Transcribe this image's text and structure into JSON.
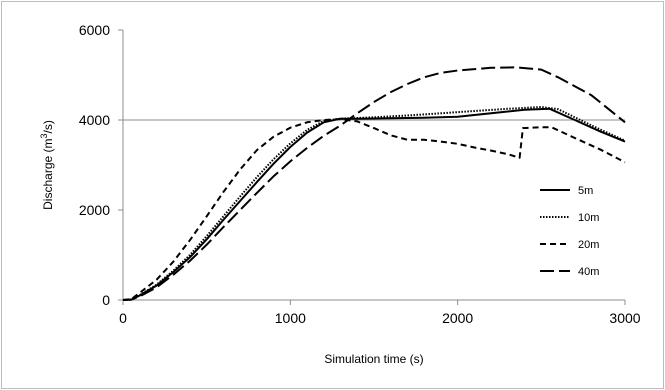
{
  "chart_data": {
    "type": "line",
    "xlabel": "Simulation time (s)",
    "ylabel_prefix": "Discharge (m",
    "ylabel_sup": "3",
    "ylabel_suffix": "/s)",
    "xlim": [
      0,
      3000
    ],
    "ylim": [
      0,
      6000
    ],
    "x_ticks": [
      0,
      1000,
      2000,
      3000
    ],
    "y_ticks": [
      0,
      2000,
      4000,
      6000
    ],
    "reference_line_y": 4000,
    "legend_position": "right",
    "series": [
      {
        "name": "5m",
        "dash": "solid",
        "points": [
          [
            0,
            0
          ],
          [
            50,
            10
          ],
          [
            100,
            100
          ],
          [
            200,
            320
          ],
          [
            300,
            620
          ],
          [
            400,
            950
          ],
          [
            500,
            1350
          ],
          [
            600,
            1780
          ],
          [
            700,
            2200
          ],
          [
            800,
            2620
          ],
          [
            900,
            3030
          ],
          [
            1000,
            3400
          ],
          [
            1100,
            3720
          ],
          [
            1200,
            3950
          ],
          [
            1300,
            4030
          ],
          [
            1400,
            4030
          ],
          [
            1600,
            4040
          ],
          [
            1800,
            4050
          ],
          [
            2000,
            4070
          ],
          [
            2200,
            4150
          ],
          [
            2400,
            4230
          ],
          [
            2550,
            4250
          ],
          [
            2700,
            4000
          ],
          [
            2850,
            3750
          ],
          [
            3000,
            3520
          ]
        ]
      },
      {
        "name": "10m",
        "dash": "dotted",
        "points": [
          [
            0,
            0
          ],
          [
            50,
            10
          ],
          [
            100,
            110
          ],
          [
            200,
            340
          ],
          [
            300,
            650
          ],
          [
            400,
            1000
          ],
          [
            500,
            1420
          ],
          [
            600,
            1860
          ],
          [
            700,
            2300
          ],
          [
            800,
            2730
          ],
          [
            900,
            3130
          ],
          [
            1000,
            3480
          ],
          [
            1100,
            3780
          ],
          [
            1200,
            3980
          ],
          [
            1300,
            4030
          ],
          [
            1500,
            4060
          ],
          [
            1700,
            4100
          ],
          [
            1900,
            4150
          ],
          [
            2100,
            4200
          ],
          [
            2300,
            4250
          ],
          [
            2500,
            4290
          ],
          [
            2600,
            4240
          ],
          [
            2800,
            3880
          ],
          [
            3000,
            3540
          ]
        ]
      },
      {
        "name": "20m",
        "dash": "short",
        "points": [
          [
            0,
            0
          ],
          [
            50,
            20
          ],
          [
            100,
            160
          ],
          [
            200,
            450
          ],
          [
            300,
            850
          ],
          [
            400,
            1330
          ],
          [
            500,
            1860
          ],
          [
            600,
            2400
          ],
          [
            700,
            2900
          ],
          [
            800,
            3330
          ],
          [
            900,
            3630
          ],
          [
            1000,
            3830
          ],
          [
            1100,
            3950
          ],
          [
            1200,
            4000
          ],
          [
            1300,
            4020
          ],
          [
            1400,
            3970
          ],
          [
            1500,
            3820
          ],
          [
            1600,
            3660
          ],
          [
            1700,
            3560
          ],
          [
            1800,
            3560
          ],
          [
            1900,
            3520
          ],
          [
            2000,
            3470
          ],
          [
            2100,
            3390
          ],
          [
            2200,
            3320
          ],
          [
            2300,
            3240
          ],
          [
            2370,
            3160
          ],
          [
            2390,
            3820
          ],
          [
            2500,
            3840
          ],
          [
            2560,
            3840
          ],
          [
            2700,
            3600
          ],
          [
            2850,
            3350
          ],
          [
            3000,
            3060
          ]
        ]
      },
      {
        "name": "40m",
        "dash": "long",
        "points": [
          [
            0,
            0
          ],
          [
            50,
            10
          ],
          [
            100,
            80
          ],
          [
            200,
            280
          ],
          [
            300,
            560
          ],
          [
            400,
            870
          ],
          [
            500,
            1230
          ],
          [
            600,
            1620
          ],
          [
            700,
            2000
          ],
          [
            800,
            2380
          ],
          [
            900,
            2750
          ],
          [
            1000,
            3080
          ],
          [
            1100,
            3380
          ],
          [
            1200,
            3650
          ],
          [
            1300,
            3880
          ],
          [
            1400,
            4150
          ],
          [
            1500,
            4400
          ],
          [
            1600,
            4620
          ],
          [
            1700,
            4800
          ],
          [
            1800,
            4950
          ],
          [
            1900,
            5050
          ],
          [
            2000,
            5100
          ],
          [
            2200,
            5160
          ],
          [
            2350,
            5170
          ],
          [
            2500,
            5120
          ],
          [
            2600,
            4950
          ],
          [
            2800,
            4550
          ],
          [
            3000,
            3950
          ]
        ]
      }
    ]
  }
}
